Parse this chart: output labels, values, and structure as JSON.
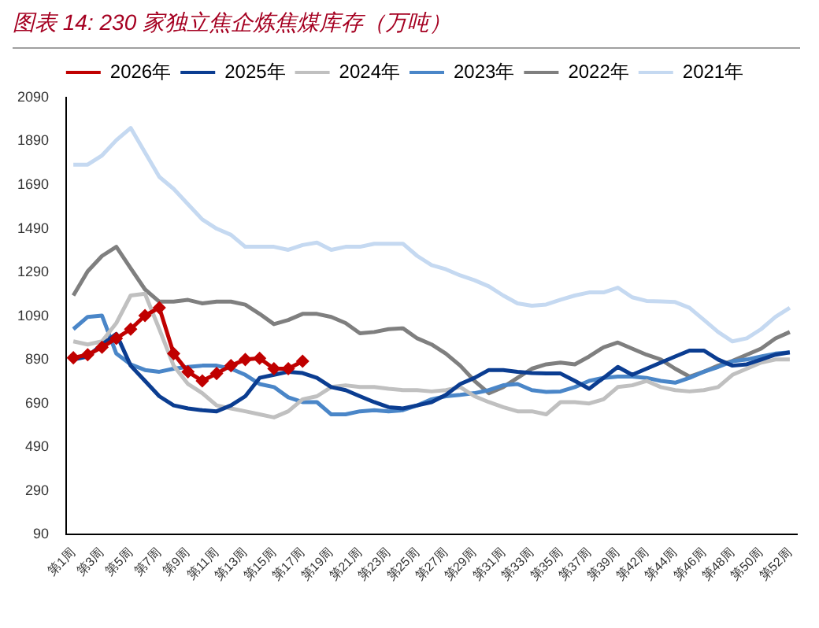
{
  "chart_data": {
    "type": "line",
    "title": "图表 14: 230 家独立焦企炼焦煤库存（万吨）",
    "categories": [
      "第1周",
      null,
      "第3周",
      null,
      "第5周",
      null,
      "第7周",
      null,
      "第9周",
      null,
      "第11周",
      null,
      "第13周",
      null,
      "第15周",
      null,
      "第17周",
      null,
      "第19周",
      null,
      "第21周",
      null,
      "第23周",
      null,
      "第25周",
      null,
      "第27周",
      null,
      "第29周",
      null,
      "第31周",
      null,
      "第33周",
      null,
      "第35周",
      null,
      "第37周",
      null,
      "第39周",
      null,
      "第42周",
      null,
      "第44周",
      null,
      "第46周",
      null,
      "第48周",
      null,
      "第50周",
      null,
      "第52周"
    ],
    "series": [
      {
        "name": "2026年",
        "color": "#c00000",
        "marker": "diamond",
        "values": [
          899,
          913,
          947,
          988,
          1030,
          1092,
          1128,
          918,
          835,
          793,
          827,
          863,
          891,
          897,
          849,
          849,
          883,
          null,
          null,
          null,
          null,
          null,
          null,
          null,
          null,
          null,
          null,
          null,
          null,
          null,
          null,
          null,
          null,
          null,
          null,
          null,
          null,
          null,
          null,
          null,
          null,
          null,
          null,
          null,
          null,
          null,
          null,
          null,
          null,
          null,
          null
        ]
      },
      {
        "name": "2025年",
        "color": "#0b3d91",
        "values": [
          891,
          905,
          960,
          1008,
          863,
          793,
          723,
          681,
          667,
          659,
          654,
          681,
          723,
          807,
          821,
          835,
          829,
          807,
          765,
          751,
          723,
          696,
          673,
          667,
          681,
          696,
          729,
          779,
          807,
          843,
          843,
          835,
          829,
          827,
          827,
          793,
          757,
          807,
          857,
          821,
          849,
          877,
          905,
          932,
          932,
          891,
          863,
          869,
          891,
          913,
          924
        ]
      },
      {
        "name": "2024年",
        "color": "#c0c0c0",
        "values": [
          974,
          960,
          974,
          1058,
          1184,
          1192,
          1030,
          863,
          779,
          737,
          681,
          667,
          654,
          640,
          626,
          654,
          709,
          723,
          765,
          773,
          765,
          765,
          757,
          751,
          751,
          745,
          751,
          765,
          723,
          696,
          673,
          654,
          654,
          640,
          696,
          696,
          690,
          709,
          765,
          773,
          793,
          765,
          751,
          745,
          751,
          765,
          821,
          849,
          877,
          891,
          891
        ]
      },
      {
        "name": "2023年",
        "color": "#4a86c8",
        "values": [
          1030,
          1086,
          1092,
          918,
          869,
          843,
          835,
          849,
          857,
          863,
          863,
          849,
          821,
          779,
          765,
          718,
          696,
          696,
          640,
          640,
          654,
          659,
          654,
          659,
          681,
          709,
          723,
          729,
          737,
          751,
          773,
          779,
          751,
          743,
          745,
          765,
          793,
          807,
          813,
          813,
          807,
          793,
          785,
          807,
          835,
          857,
          883,
          891,
          905,
          918,
          924
        ]
      },
      {
        "name": "2022年",
        "color": "#7f7f7f",
        "values": [
          1184,
          1295,
          1365,
          1407,
          1309,
          1212,
          1156,
          1156,
          1164,
          1148,
          1156,
          1156,
          1142,
          1100,
          1053,
          1072,
          1100,
          1100,
          1086,
          1058,
          1011,
          1017,
          1030,
          1034,
          988,
          960,
          918,
          863,
          793,
          737,
          765,
          807,
          849,
          869,
          877,
          869,
          905,
          947,
          969,
          941,
          913,
          891,
          849,
          813,
          835,
          863,
          885,
          913,
          941,
          988,
          1017
        ]
      },
      {
        "name": "2021年",
        "color": "#c5d9f1",
        "values": [
          1783,
          1783,
          1825,
          1895,
          1951,
          1839,
          1727,
          1672,
          1602,
          1532,
          1490,
          1462,
          1407,
          1407,
          1407,
          1393,
          1415,
          1426,
          1393,
          1407,
          1407,
          1421,
          1421,
          1421,
          1365,
          1323,
          1304,
          1276,
          1254,
          1226,
          1184,
          1148,
          1137,
          1143,
          1165,
          1184,
          1198,
          1198,
          1220,
          1176,
          1159,
          1157,
          1154,
          1128,
          1073,
          1017,
          974,
          988,
          1030,
          1086,
          1128
        ]
      }
    ],
    "ylim": [
      90,
      2090
    ],
    "yticks": [
      90,
      290,
      490,
      690,
      890,
      1090,
      1290,
      1490,
      1690,
      1890,
      2090
    ],
    "grid": false,
    "legend": "top"
  }
}
